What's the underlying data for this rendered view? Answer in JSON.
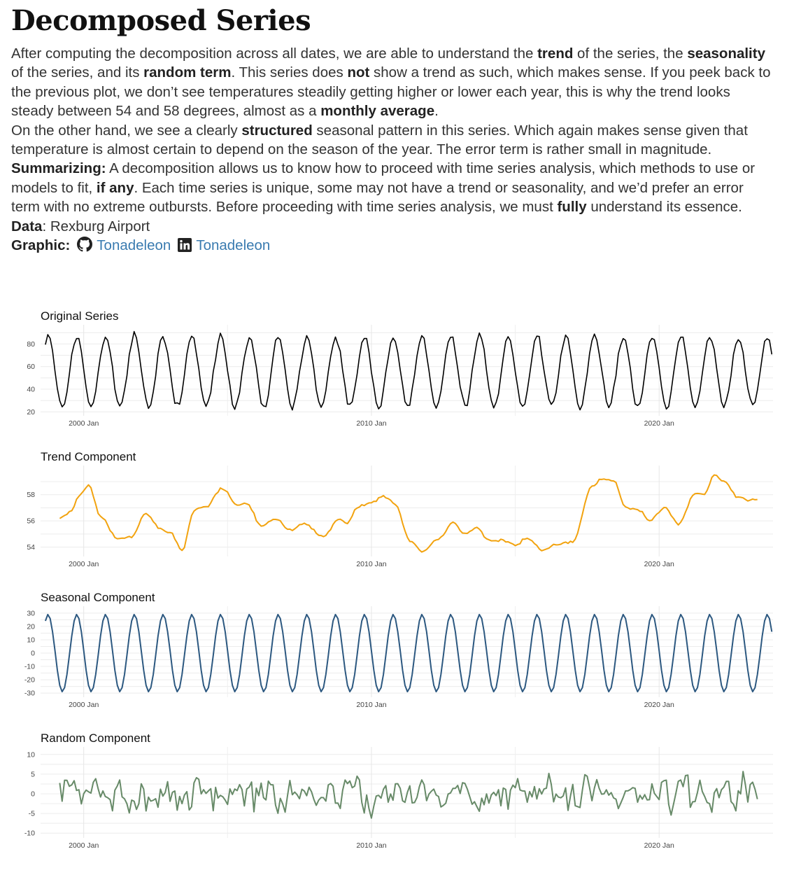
{
  "header": {
    "title": "Decomposed Series",
    "p1": {
      "t1": "After computing the decomposition across all dates, we are able to understand the ",
      "b1": "trend",
      "t2": " of the series, the ",
      "b2": "seasonality",
      "t3": " of the series, and its ",
      "b3": "random term",
      "t4": ". This series does ",
      "b4": "not",
      "t5": " show a trend as such, which makes sense. If you peek back to the previous plot, we don’t see temperatures steadily getting higher or lower each year, this is why the trend looks steady between 54 and 58 degrees, almost as a ",
      "b5": "monthly average",
      "t6": "."
    },
    "p2": {
      "t1": "On the other hand, we see a clearly ",
      "b1": "structured",
      "t2": " seasonal pattern in this series. Which again makes sense given that temperature is almost certain to depend on the season of the year. The error term is rather small in magnitude."
    },
    "p3": {
      "b1": "Summarizing:",
      "t1": " A decomposition allows us to know how to proceed with time series analysis, which methods to use or models to fit, ",
      "b2": "if any",
      "t2": ". Each time series is unique, some may not have a trend or seasonality, and we’d prefer an error term with no extreme outbursts. Before proceeding with time series analysis, we must ",
      "b3": "fully",
      "t3": " understand its essence."
    },
    "data_label": "Data",
    "data_value": ": Rexburg Airport",
    "graphic_label": "Graphic:",
    "github_handle": "Tonadeleon",
    "linkedin_handle": "Tonadeleon",
    "link_color": "#3a7bb0"
  },
  "chart_data": [
    {
      "type": "line",
      "title": "Original Series",
      "color": "#000000",
      "x_start": "1998-09",
      "x_end": "2023-12",
      "x_ticks": [
        "2000 Jan",
        "2010 Jan",
        "2020 Jan"
      ],
      "y_ticks": [
        20,
        40,
        60,
        80
      ],
      "ylim": [
        19,
        92
      ],
      "pattern": "seasonal",
      "mean": 55.5,
      "amplitude": 31,
      "noise": 3.5
    },
    {
      "type": "line",
      "title": "Trend Component",
      "color": "#f2a30f",
      "x_start": "1999-03",
      "x_end": "2023-06",
      "x_ticks": [
        "2000 Jan",
        "2010 Jan",
        "2020 Jan"
      ],
      "y_ticks": [
        54,
        56,
        58
      ],
      "ylim": [
        53.5,
        59.8
      ],
      "key_points": [
        [
          "1999-03",
          56.2
        ],
        [
          "1999-07",
          56.6
        ],
        [
          "1999-12",
          58.2
        ],
        [
          "2000-03",
          58.8
        ],
        [
          "2000-08",
          56.3
        ],
        [
          "2001-03",
          54.7
        ],
        [
          "2001-09",
          54.8
        ],
        [
          "2002-03",
          56.6
        ],
        [
          "2002-09",
          55.4
        ],
        [
          "2003-01",
          55.2
        ],
        [
          "2003-06",
          53.7
        ],
        [
          "2003-11",
          56.8
        ],
        [
          "2004-04",
          57.1
        ],
        [
          "2004-11",
          58.5
        ],
        [
          "2005-05",
          57.2
        ],
        [
          "2005-09",
          57.4
        ],
        [
          "2006-03",
          55.6
        ],
        [
          "2006-09",
          56.2
        ],
        [
          "2007-03",
          55.3
        ],
        [
          "2007-09",
          55.8
        ],
        [
          "2008-05",
          54.8
        ],
        [
          "2008-11",
          56.1
        ],
        [
          "2009-03",
          55.8
        ],
        [
          "2009-07",
          57.0
        ],
        [
          "2010-01",
          57.4
        ],
        [
          "2010-06",
          57.9
        ],
        [
          "2010-11",
          57.3
        ],
        [
          "2011-05",
          54.5
        ],
        [
          "2011-10",
          53.7
        ],
        [
          "2012-05",
          54.6
        ],
        [
          "2012-11",
          55.9
        ],
        [
          "2013-04",
          55.0
        ],
        [
          "2013-09",
          55.5
        ],
        [
          "2014-02",
          54.5
        ],
        [
          "2014-09",
          54.5
        ],
        [
          "2015-01",
          54.1
        ],
        [
          "2015-06",
          54.7
        ],
        [
          "2016-01",
          53.8
        ],
        [
          "2016-06",
          54.2
        ],
        [
          "2017-01",
          54.4
        ],
        [
          "2017-09",
          58.6
        ],
        [
          "2018-01",
          59.2
        ],
        [
          "2018-06",
          59.1
        ],
        [
          "2018-11",
          57.0
        ],
        [
          "2019-05",
          56.8
        ],
        [
          "2019-09",
          56.0
        ],
        [
          "2020-03",
          57.0
        ],
        [
          "2020-09",
          55.8
        ],
        [
          "2021-04",
          58.0
        ],
        [
          "2021-08",
          58.0
        ],
        [
          "2021-12",
          59.5
        ],
        [
          "2022-04",
          59.0
        ],
        [
          "2022-10",
          57.8
        ],
        [
          "2023-02",
          57.6
        ],
        [
          "2023-06",
          57.6
        ]
      ]
    },
    {
      "type": "line",
      "title": "Seasonal Component",
      "color": "#2c5880",
      "x_start": "1998-09",
      "x_end": "2023-12",
      "x_ticks": [
        "2000 Jan",
        "2010 Jan",
        "2020 Jan"
      ],
      "y_ticks": [
        30,
        20,
        10,
        0,
        -10,
        -20,
        -30
      ],
      "ylim": [
        -31,
        31
      ],
      "pattern": "seasonal",
      "mean": 0,
      "amplitude": 29,
      "noise": 0
    },
    {
      "type": "line",
      "title": "Random Component",
      "color": "#678a68",
      "x_start": "1999-03",
      "x_end": "2023-06",
      "x_ticks": [
        "2000 Jan",
        "2010 Jan",
        "2020 Jan"
      ],
      "y_ticks": [
        10,
        5,
        0,
        -5,
        -10
      ],
      "ylim": [
        -10.5,
        10.5
      ],
      "pattern": "noise",
      "mean": 0,
      "amplitude": 3.5,
      "noise": 3
    }
  ]
}
